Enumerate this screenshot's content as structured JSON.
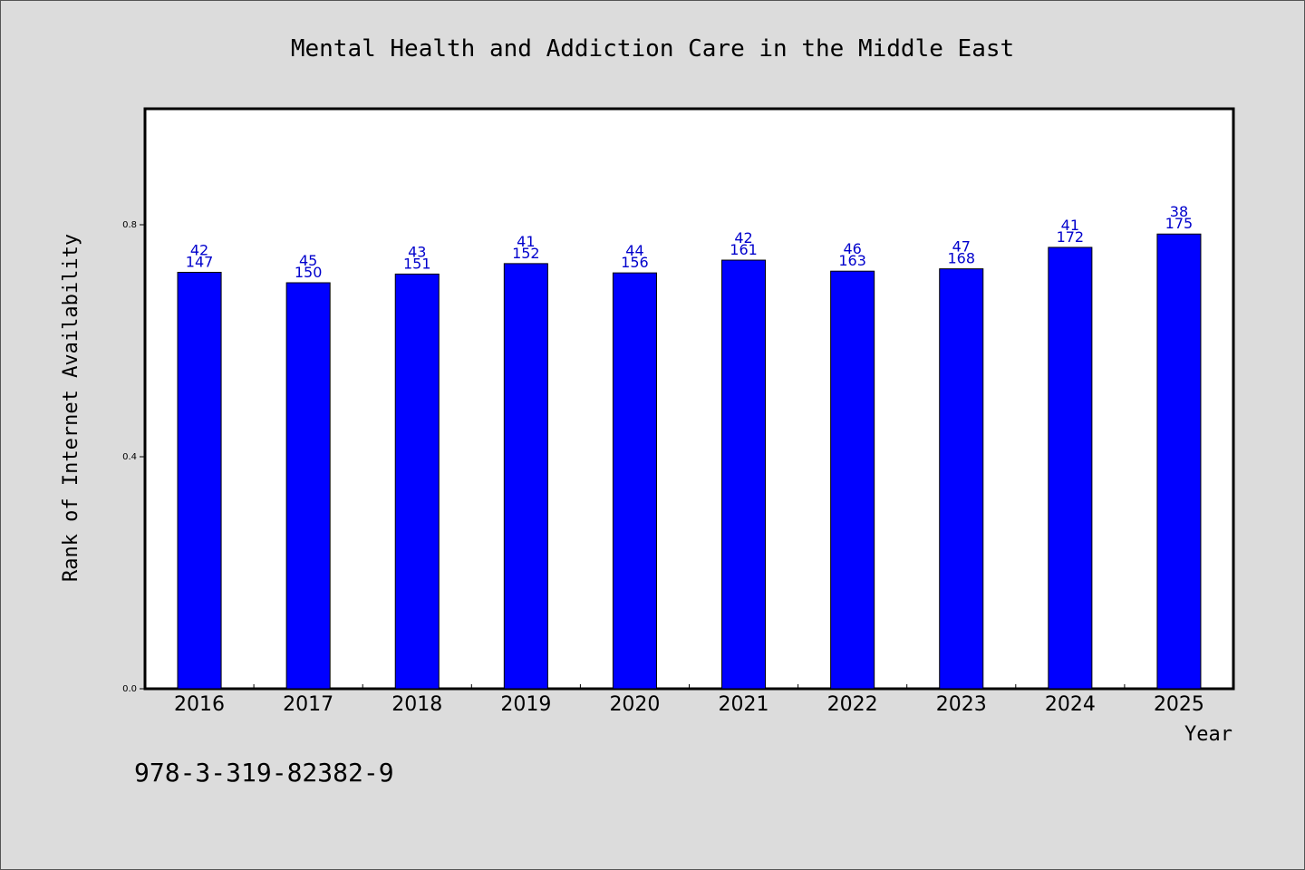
{
  "chart_data": {
    "type": "bar",
    "title": "Mental Health and Addiction Care in the Middle East",
    "xlabel": "Year",
    "ylabel": "Rank of Internet Availability",
    "categories": [
      "2016",
      "2017",
      "2018",
      "2019",
      "2020",
      "2021",
      "2022",
      "2023",
      "2024",
      "2025"
    ],
    "values": [
      0.718,
      0.7,
      0.715,
      0.733,
      0.717,
      0.739,
      0.72,
      0.724,
      0.761,
      0.784
    ],
    "label_top": [
      "42",
      "45",
      "43",
      "41",
      "44",
      "42",
      "46",
      "47",
      "41",
      "38"
    ],
    "label_bottom": [
      "147",
      "150",
      "151",
      "152",
      "156",
      "161",
      "163",
      "168",
      "172",
      "175"
    ],
    "ylim": [
      0,
      1.0
    ],
    "yticks": [
      0.0,
      0.4,
      0.8
    ],
    "ytick_labels": [
      "0.0",
      "0.4",
      "0.8"
    ],
    "grid": false,
    "colors": {
      "bar": "#0000ff",
      "label": "#0000cc"
    }
  },
  "footer": {
    "isbn": "978-3-319-82382-9"
  }
}
